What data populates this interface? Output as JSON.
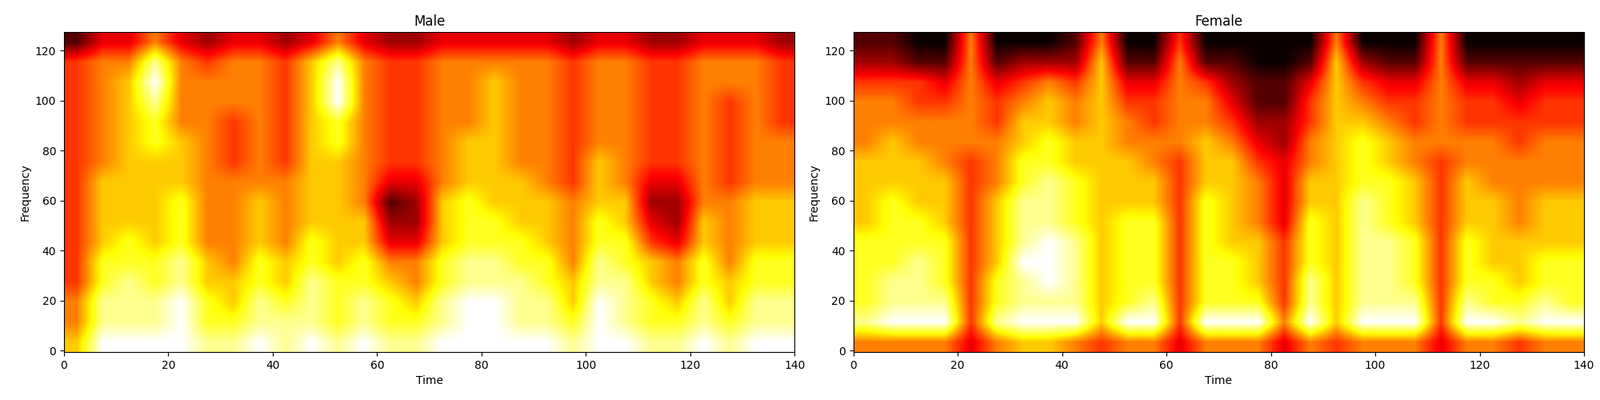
{
  "chart_data": [
    {
      "type": "heatmap",
      "title": "Male",
      "x_label": "Time",
      "y_label": "Frequency",
      "xlim": [
        0,
        140
      ],
      "ylim": [
        -0.5,
        127.5
      ],
      "xticks": [
        0,
        20,
        40,
        60,
        80,
        100,
        120,
        140
      ],
      "yticks": [
        0,
        20,
        40,
        60,
        80,
        100,
        120
      ],
      "color": "hot",
      "color_range": [
        0,
        9
      ],
      "cells": [
        [
          6,
          9,
          9,
          9,
          9,
          8,
          8,
          9,
          8,
          9,
          8,
          9,
          8,
          8,
          9,
          9,
          9,
          9,
          9,
          8,
          9,
          9,
          8,
          8,
          9,
          8,
          9,
          9
        ],
        [
          5,
          8,
          8,
          8,
          9,
          7,
          7,
          8,
          8,
          8,
          7,
          8,
          7,
          7,
          8,
          9,
          9,
          8,
          8,
          7,
          9,
          8,
          7,
          7,
          8,
          7,
          8,
          8
        ],
        [
          5,
          8,
          8,
          8,
          9,
          7,
          6,
          8,
          7,
          8,
          7,
          8,
          7,
          6,
          8,
          9,
          9,
          8,
          8,
          6,
          9,
          8,
          7,
          6,
          8,
          6,
          8,
          8
        ],
        [
          4,
          7,
          8,
          7,
          8,
          6,
          6,
          7,
          6,
          8,
          7,
          7,
          6,
          5,
          7,
          8,
          8,
          8,
          7,
          6,
          8,
          8,
          6,
          5,
          7,
          6,
          7,
          7
        ],
        [
          4,
          7,
          7,
          7,
          8,
          6,
          5,
          7,
          6,
          7,
          6,
          7,
          5,
          5,
          7,
          8,
          8,
          7,
          7,
          5,
          8,
          7,
          6,
          5,
          7,
          5,
          7,
          7
        ],
        [
          4,
          6,
          7,
          6,
          7,
          5,
          5,
          6,
          5,
          7,
          6,
          6,
          3,
          3,
          6,
          7,
          7,
          7,
          6,
          5,
          7,
          7,
          4,
          3,
          6,
          5,
          6,
          6
        ],
        [
          4,
          6,
          6,
          6,
          7,
          5,
          5,
          6,
          5,
          6,
          6,
          6,
          2,
          2,
          6,
          7,
          7,
          6,
          6,
          5,
          7,
          6,
          3,
          2,
          6,
          5,
          6,
          6
        ],
        [
          4,
          6,
          6,
          6,
          7,
          5,
          5,
          6,
          5,
          6,
          6,
          5,
          1,
          2,
          6,
          7,
          6,
          6,
          6,
          5,
          6,
          6,
          2,
          2,
          5,
          5,
          6,
          6
        ],
        [
          4,
          6,
          6,
          6,
          6,
          5,
          5,
          5,
          5,
          6,
          6,
          5,
          3,
          3,
          5,
          6,
          6,
          6,
          5,
          4,
          6,
          5,
          3,
          3,
          5,
          4,
          5,
          5
        ],
        [
          4,
          5,
          6,
          6,
          6,
          5,
          4,
          5,
          4,
          6,
          6,
          5,
          4,
          4,
          5,
          6,
          6,
          5,
          5,
          4,
          6,
          5,
          4,
          4,
          5,
          4,
          5,
          5
        ],
        [
          4,
          5,
          6,
          7,
          6,
          5,
          4,
          5,
          4,
          6,
          7,
          5,
          4,
          4,
          5,
          6,
          6,
          5,
          5,
          4,
          5,
          5,
          4,
          4,
          5,
          4,
          5,
          5
        ],
        [
          4,
          5,
          6,
          7,
          5,
          5,
          4,
          5,
          4,
          6,
          7,
          5,
          4,
          4,
          5,
          5,
          6,
          5,
          5,
          4,
          5,
          5,
          4,
          4,
          5,
          4,
          5,
          4
        ],
        [
          4,
          5,
          6,
          8,
          5,
          5,
          5,
          5,
          4,
          6,
          9,
          5,
          4,
          4,
          5,
          5,
          6,
          5,
          5,
          4,
          5,
          5,
          4,
          4,
          5,
          4,
          5,
          4
        ],
        [
          4,
          5,
          6,
          9,
          5,
          5,
          5,
          5,
          4,
          6,
          9,
          5,
          4,
          4,
          5,
          5,
          6,
          5,
          5,
          4,
          5,
          5,
          4,
          4,
          5,
          5,
          5,
          4
        ],
        [
          4,
          5,
          5,
          8,
          5,
          4,
          5,
          5,
          4,
          6,
          8,
          5,
          4,
          4,
          5,
          5,
          5,
          5,
          5,
          4,
          5,
          5,
          4,
          4,
          5,
          5,
          5,
          4
        ],
        [
          1,
          3,
          3,
          5,
          3,
          2,
          3,
          3,
          2,
          3,
          5,
          3,
          2,
          2,
          3,
          3,
          3,
          3,
          3,
          2,
          3,
          3,
          2,
          2,
          3,
          3,
          3,
          2
        ]
      ]
    },
    {
      "type": "heatmap",
      "title": "Female",
      "x_label": "Time",
      "y_label": "Frequency",
      "xlim": [
        0,
        140
      ],
      "ylim": [
        -0.5,
        127.5
      ],
      "xticks": [
        0,
        20,
        40,
        60,
        80,
        100,
        120,
        140
      ],
      "yticks": [
        0,
        20,
        40,
        60,
        80,
        100,
        120
      ],
      "color": "hot",
      "color_range": [
        0,
        9
      ],
      "cells": [
        [
          5,
          5,
          5,
          5,
          3,
          5,
          6,
          6,
          5,
          4,
          5,
          5,
          3,
          5,
          5,
          5,
          3,
          5,
          4,
          5,
          5,
          5,
          3,
          5,
          5,
          4,
          5,
          5
        ],
        [
          8,
          9,
          9,
          9,
          4,
          8,
          9,
          9,
          9,
          6,
          9,
          9,
          4,
          9,
          9,
          9,
          5,
          9,
          6,
          9,
          9,
          9,
          4,
          9,
          9,
          8,
          9,
          9
        ],
        [
          7,
          8,
          8,
          8,
          4,
          7,
          8,
          8,
          8,
          6,
          7,
          8,
          4,
          7,
          7,
          7,
          4,
          8,
          6,
          8,
          8,
          8,
          4,
          8,
          7,
          7,
          8,
          7
        ],
        [
          7,
          8,
          8,
          7,
          4,
          7,
          8,
          9,
          8,
          6,
          7,
          7,
          4,
          7,
          7,
          6,
          4,
          8,
          6,
          8,
          8,
          7,
          4,
          7,
          7,
          6,
          7,
          7
        ],
        [
          7,
          7,
          8,
          7,
          4,
          6,
          9,
          9,
          8,
          6,
          7,
          7,
          4,
          7,
          7,
          6,
          4,
          7,
          6,
          8,
          8,
          7,
          4,
          7,
          6,
          6,
          7,
          7
        ],
        [
          7,
          7,
          7,
          7,
          4,
          6,
          8,
          9,
          8,
          6,
          7,
          7,
          4,
          7,
          6,
          6,
          4,
          7,
          6,
          8,
          8,
          7,
          4,
          7,
          6,
          6,
          6,
          6
        ],
        [
          6,
          7,
          7,
          6,
          4,
          6,
          8,
          8,
          7,
          6,
          7,
          7,
          4,
          7,
          6,
          5,
          3,
          7,
          6,
          8,
          7,
          6,
          4,
          6,
          6,
          5,
          6,
          6
        ],
        [
          6,
          7,
          6,
          6,
          4,
          6,
          8,
          8,
          7,
          6,
          6,
          6,
          4,
          7,
          6,
          5,
          3,
          6,
          6,
          8,
          7,
          6,
          4,
          6,
          6,
          5,
          6,
          6
        ],
        [
          6,
          6,
          6,
          6,
          4,
          5,
          7,
          8,
          7,
          6,
          6,
          6,
          4,
          6,
          6,
          5,
          3,
          6,
          6,
          7,
          7,
          6,
          4,
          6,
          5,
          5,
          5,
          5
        ],
        [
          6,
          6,
          6,
          5,
          4,
          5,
          7,
          7,
          6,
          6,
          6,
          5,
          4,
          6,
          6,
          4,
          3,
          5,
          6,
          7,
          6,
          5,
          4,
          5,
          5,
          5,
          5,
          5
        ],
        [
          5,
          6,
          5,
          5,
          5,
          5,
          6,
          7,
          6,
          6,
          5,
          5,
          5,
          6,
          5,
          3,
          2,
          5,
          6,
          7,
          6,
          5,
          5,
          5,
          5,
          4,
          5,
          5
        ],
        [
          5,
          5,
          5,
          5,
          5,
          4,
          6,
          6,
          5,
          6,
          5,
          4,
          5,
          5,
          4,
          2,
          2,
          4,
          6,
          6,
          5,
          4,
          5,
          4,
          4,
          4,
          4,
          4
        ],
        [
          5,
          5,
          4,
          4,
          5,
          4,
          5,
          6,
          5,
          6,
          4,
          4,
          5,
          5,
          3,
          1,
          1,
          4,
          6,
          5,
          4,
          4,
          5,
          4,
          4,
          3,
          4,
          4
        ],
        [
          4,
          4,
          4,
          3,
          5,
          3,
          4,
          5,
          4,
          6,
          3,
          3,
          5,
          4,
          2,
          1,
          1,
          3,
          6,
          4,
          3,
          3,
          5,
          3,
          3,
          2,
          3,
          3
        ],
        [
          2,
          2,
          1,
          1,
          5,
          1,
          2,
          2,
          2,
          6,
          1,
          1,
          5,
          1,
          1,
          0,
          0,
          1,
          6,
          2,
          1,
          1,
          5,
          1,
          1,
          1,
          1,
          1
        ],
        [
          1,
          1,
          0,
          0,
          5,
          0,
          0,
          0,
          1,
          5,
          0,
          0,
          4,
          0,
          0,
          0,
          0,
          0,
          5,
          0,
          0,
          0,
          5,
          0,
          0,
          0,
          0,
          0
        ]
      ]
    }
  ]
}
